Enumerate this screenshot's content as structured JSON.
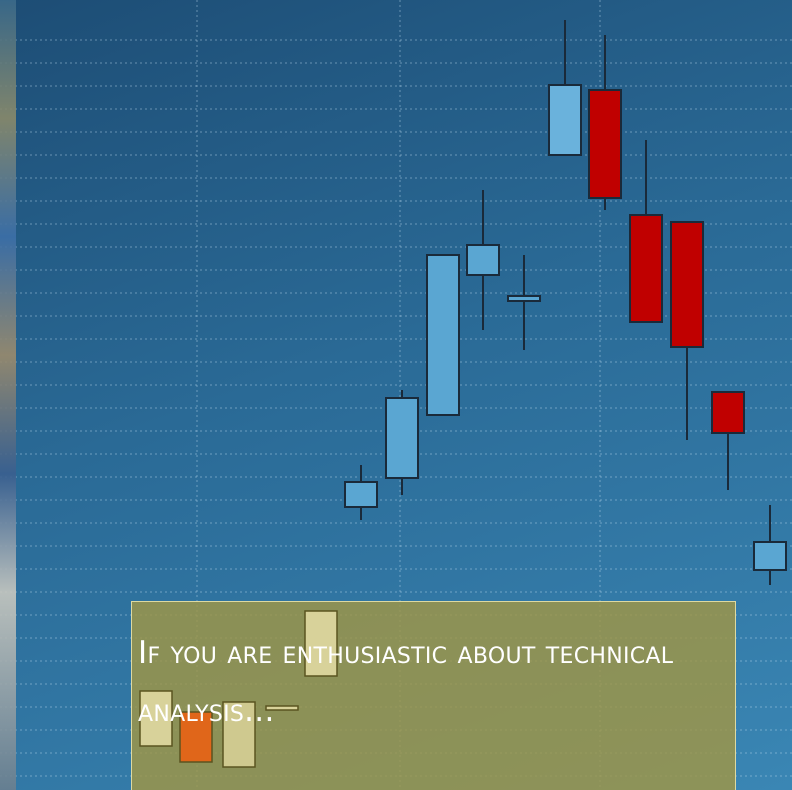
{
  "caption": {
    "text": "If you are enthusiastic about technical analysis..."
  }
}
